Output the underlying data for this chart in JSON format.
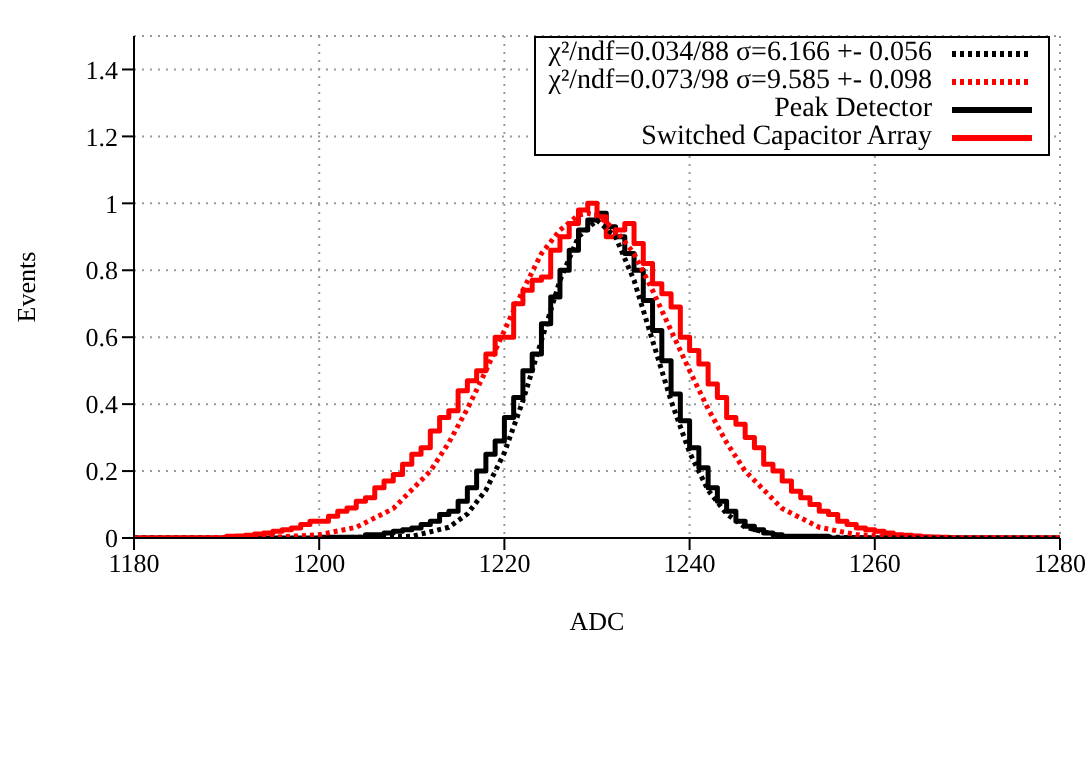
{
  "chart_data": {
    "type": "step",
    "xlabel": "ADC",
    "ylabel": "Events",
    "xlim": [
      1180,
      1280
    ],
    "xticks": [
      1180,
      1200,
      1220,
      1240,
      1260,
      1280
    ],
    "ylim": [
      0,
      1.5
    ],
    "yticks": [
      0,
      0.2,
      0.4,
      0.6,
      0.8,
      1,
      1.2,
      1.4
    ],
    "grid": true,
    "legend": "top right",
    "marker": "none",
    "series": [
      {
        "name": "Peak Detector",
        "color": "#000000",
        "line_style": "solid",
        "x": [
          1180,
          1200,
          1205,
          1206,
          1207,
          1208,
          1209,
          1210,
          1211,
          1212,
          1213,
          1214,
          1215,
          1216,
          1217,
          1218,
          1219,
          1220,
          1221,
          1222,
          1223,
          1224,
          1225,
          1226,
          1227,
          1228,
          1229,
          1230,
          1231,
          1232,
          1233,
          1234,
          1235,
          1236,
          1237,
          1238,
          1239,
          1240,
          1241,
          1242,
          1243,
          1244,
          1245,
          1246,
          1247,
          1248,
          1249,
          1250,
          1255,
          1280
        ],
        "values": [
          0,
          0.002,
          0.01,
          0.01,
          0.015,
          0.02,
          0.025,
          0.03,
          0.04,
          0.05,
          0.07,
          0.08,
          0.11,
          0.15,
          0.2,
          0.25,
          0.29,
          0.36,
          0.42,
          0.5,
          0.55,
          0.64,
          0.72,
          0.8,
          0.86,
          0.92,
          0.95,
          0.97,
          0.93,
          0.9,
          0.85,
          0.8,
          0.71,
          0.62,
          0.53,
          0.43,
          0.35,
          0.27,
          0.21,
          0.15,
          0.11,
          0.08,
          0.05,
          0.035,
          0.025,
          0.015,
          0.01,
          0.005,
          0,
          0
        ]
      },
      {
        "name": "Switched Capacitor Array",
        "color": "#ff0000",
        "line_style": "solid",
        "x": [
          1180,
          1190,
          1191,
          1192,
          1193,
          1194,
          1195,
          1196,
          1197,
          1198,
          1199,
          1200,
          1201,
          1202,
          1203,
          1204,
          1205,
          1206,
          1207,
          1208,
          1209,
          1210,
          1211,
          1212,
          1213,
          1214,
          1215,
          1216,
          1217,
          1218,
          1219,
          1220,
          1221,
          1222,
          1223,
          1224,
          1225,
          1226,
          1227,
          1228,
          1229,
          1230,
          1231,
          1232,
          1233,
          1234,
          1235,
          1236,
          1237,
          1238,
          1239,
          1240,
          1241,
          1242,
          1243,
          1244,
          1245,
          1246,
          1247,
          1248,
          1249,
          1250,
          1251,
          1252,
          1253,
          1254,
          1255,
          1256,
          1257,
          1258,
          1259,
          1260,
          1261,
          1262,
          1263,
          1264,
          1265,
          1266,
          1267,
          1268,
          1280
        ],
        "values": [
          0,
          0.005,
          0.006,
          0.008,
          0.012,
          0.015,
          0.02,
          0.025,
          0.03,
          0.04,
          0.05,
          0.05,
          0.065,
          0.08,
          0.09,
          0.11,
          0.12,
          0.15,
          0.17,
          0.19,
          0.22,
          0.25,
          0.27,
          0.32,
          0.36,
          0.38,
          0.44,
          0.47,
          0.5,
          0.55,
          0.6,
          0.6,
          0.7,
          0.74,
          0.77,
          0.78,
          0.86,
          0.9,
          0.94,
          0.98,
          1.0,
          0.96,
          0.9,
          0.92,
          0.94,
          0.88,
          0.82,
          0.76,
          0.73,
          0.69,
          0.6,
          0.56,
          0.52,
          0.46,
          0.42,
          0.36,
          0.34,
          0.3,
          0.27,
          0.22,
          0.2,
          0.17,
          0.14,
          0.12,
          0.1,
          0.08,
          0.07,
          0.05,
          0.04,
          0.03,
          0.025,
          0.02,
          0.015,
          0.01,
          0.008,
          0.006,
          0.004,
          0.003,
          0.002,
          0,
          0
        ]
      },
      {
        "name": "χ²/ndf=0.034/88 σ=6.166 +- 0.056",
        "type": "line",
        "color": "#000000",
        "line_style": "dotted",
        "x": [
          1180,
          1200,
          1210,
          1214,
          1216,
          1218,
          1220,
          1222,
          1224,
          1226,
          1228,
          1230,
          1232,
          1234,
          1236,
          1238,
          1240,
          1242,
          1244,
          1246,
          1250,
          1260,
          1280
        ],
        "values": [
          0,
          0,
          0.005,
          0.032,
          0.072,
          0.143,
          0.255,
          0.41,
          0.59,
          0.77,
          0.9,
          0.95,
          0.9,
          0.77,
          0.59,
          0.41,
          0.255,
          0.143,
          0.072,
          0.032,
          0.005,
          0,
          0
        ]
      },
      {
        "name": "χ²/ndf=0.073/98 σ=9.585 +- 0.098",
        "type": "line",
        "color": "#ff0000",
        "line_style": "dotted",
        "x": [
          1180,
          1195,
          1200,
          1204,
          1208,
          1212,
          1214,
          1216,
          1218,
          1220,
          1222,
          1224,
          1226,
          1228,
          1229,
          1230,
          1232,
          1234,
          1236,
          1238,
          1240,
          1242,
          1244,
          1246,
          1250,
          1254,
          1258,
          1264,
          1280
        ],
        "values": [
          0,
          0.002,
          0.01,
          0.032,
          0.088,
          0.2,
          0.285,
          0.386,
          0.5,
          0.62,
          0.74,
          0.85,
          0.92,
          0.965,
          0.97,
          0.965,
          0.92,
          0.85,
          0.74,
          0.62,
          0.5,
          0.386,
          0.285,
          0.2,
          0.088,
          0.032,
          0.01,
          0.001,
          0
        ]
      }
    ]
  }
}
